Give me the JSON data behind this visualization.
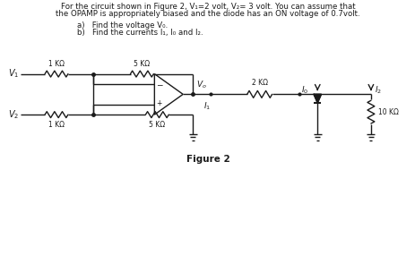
{
  "title_line1": "For the circuit shown in Figure 2, V₁=2 volt, V₂= 3 volt. You can assume that",
  "title_line2": "the OPAMP is appropriately biased and the diode has an ON voltage of 0.7volt.",
  "question_a": "a)   Find the voltage V₀.",
  "question_b": "b)   Find the currents I₁, I₀ and I₂.",
  "figure_label": "Figure 2",
  "bg_color": "#ffffff",
  "line_color": "#1a1a1a",
  "res1k_top_label": "1 KΩ",
  "res5k_top_label": "5 KΩ",
  "res1k_bot_label": "1 KΩ",
  "res5k_bot_label": "5 KΩ",
  "res2k_label": "2 KΩ",
  "res10k_label": "10 KΩ",
  "v1_label": "V₁",
  "v2_label": "V₂",
  "vo_label": "V₀",
  "i1_label": "I₁",
  "id_label": "I₀",
  "i2_label": "I₂"
}
